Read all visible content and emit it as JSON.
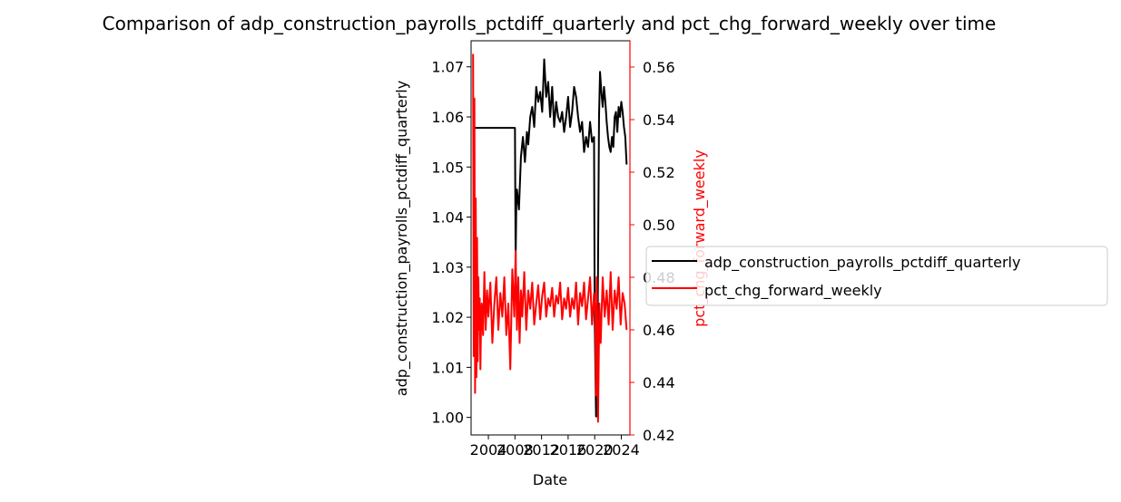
{
  "chart_data": {
    "type": "line",
    "title": "Comparison of adp_construction_payrolls_pctdiff_quarterly and pct_chg_forward_weekly over time",
    "xlabel": "Date",
    "ylabel_left": "adp_construction_payrolls_pctdiff_quarterly",
    "ylabel_right": "pct_chg_forward_weekly",
    "xlim": [
      2001.4,
      2025.3
    ],
    "ylim_left": [
      0.9965,
      1.0752
    ],
    "ylim_right": [
      0.42,
      0.57
    ],
    "x_ticks": [
      2004,
      2008,
      2012,
      2016,
      2020,
      2024
    ],
    "x_tick_labels": [
      "2004",
      "2008",
      "2012",
      "2016",
      "2020",
      "2024"
    ],
    "y_ticks_left": [
      1.0,
      1.01,
      1.02,
      1.03,
      1.04,
      1.05,
      1.06,
      1.07
    ],
    "y_tick_labels_left": [
      "1.00",
      "1.01",
      "1.02",
      "1.03",
      "1.04",
      "1.05",
      "1.06",
      "1.07"
    ],
    "y_ticks_right": [
      0.42,
      0.44,
      0.46,
      0.48,
      0.5,
      0.52,
      0.54,
      0.56
    ],
    "y_tick_labels_right": [
      "0.42",
      "0.44",
      "0.46",
      "0.48",
      "0.50",
      "0.52",
      "0.54",
      "0.56"
    ],
    "legend_position": "right, outside",
    "series": [
      {
        "name": "adp_construction_payrolls_pctdiff_quarterly",
        "axis": "left",
        "color": "#000000",
        "x": [
          2001.8,
          2007.0,
          2008.0,
          2008.1,
          2008.2,
          2008.3,
          2008.6,
          2008.9,
          2009.2,
          2009.5,
          2009.8,
          2010.0,
          2010.3,
          2010.6,
          2010.9,
          2011.2,
          2011.5,
          2011.8,
          2012.1,
          2012.4,
          2012.7,
          2013.0,
          2013.3,
          2013.6,
          2013.9,
          2014.2,
          2014.5,
          2014.8,
          2015.1,
          2015.4,
          2015.7,
          2016.0,
          2016.3,
          2016.6,
          2016.9,
          2017.2,
          2017.5,
          2017.8,
          2018.1,
          2018.4,
          2018.7,
          2019.0,
          2019.3,
          2019.6,
          2019.9,
          2020.0,
          2020.2,
          2020.35,
          2020.5,
          2020.65,
          2020.8,
          2021.0,
          2021.2,
          2021.4,
          2021.6,
          2021.8,
          2022.0,
          2022.2,
          2022.4,
          2022.6,
          2022.8,
          2023.0,
          2023.2,
          2023.4,
          2023.6,
          2023.8,
          2024.0,
          2024.2,
          2024.4,
          2024.6,
          2024.8
        ],
        "values": [
          1.0578,
          1.0578,
          1.0578,
          1.0312,
          1.042,
          1.0455,
          1.0415,
          1.052,
          1.056,
          1.051,
          1.057,
          1.0545,
          1.06,
          1.062,
          1.058,
          1.066,
          1.063,
          1.065,
          1.061,
          1.0715,
          1.064,
          1.067,
          1.06,
          1.066,
          1.058,
          1.063,
          1.06,
          1.059,
          1.061,
          1.057,
          1.06,
          1.064,
          1.058,
          1.061,
          1.066,
          1.064,
          1.06,
          1.057,
          1.059,
          1.053,
          1.056,
          1.054,
          1.059,
          1.055,
          1.056,
          1.02,
          1.0002,
          1.0002,
          1.03,
          1.06,
          1.069,
          1.065,
          1.062,
          1.066,
          1.063,
          1.059,
          1.056,
          1.054,
          1.053,
          1.056,
          1.054,
          1.06,
          1.061,
          1.057,
          1.062,
          1.06,
          1.063,
          1.061,
          1.058,
          1.056,
          1.0505
        ]
      },
      {
        "name": "pct_chg_forward_weekly",
        "axis": "right",
        "color": "#ff0000",
        "x": [
          2001.7,
          2001.8,
          2001.9,
          2002.0,
          2002.1,
          2002.2,
          2002.3,
          2002.4,
          2002.5,
          2002.6,
          2002.7,
          2002.8,
          2002.9,
          2003.0,
          2003.2,
          2003.4,
          2003.6,
          2003.8,
          2004.0,
          2004.3,
          2004.6,
          2004.9,
          2005.2,
          2005.5,
          2005.8,
          2006.1,
          2006.4,
          2006.7,
          2007.0,
          2007.3,
          2007.6,
          2007.9,
          2008.1,
          2008.3,
          2008.5,
          2008.7,
          2008.9,
          2009.1,
          2009.4,
          2009.7,
          2010.0,
          2010.3,
          2010.6,
          2010.9,
          2011.2,
          2011.5,
          2011.8,
          2012.1,
          2012.4,
          2012.7,
          2013.0,
          2013.3,
          2013.6,
          2013.9,
          2014.2,
          2014.5,
          2014.8,
          2015.1,
          2015.4,
          2015.7,
          2016.0,
          2016.3,
          2016.6,
          2016.9,
          2017.2,
          2017.5,
          2017.8,
          2018.1,
          2018.4,
          2018.7,
          2019.0,
          2019.3,
          2019.6,
          2019.9,
          2020.1,
          2020.2,
          2020.3,
          2020.4,
          2020.5,
          2020.7,
          2020.9,
          2021.2,
          2021.5,
          2021.8,
          2022.1,
          2022.4,
          2022.7,
          2023.0,
          2023.3,
          2023.6,
          2023.9,
          2024.2,
          2024.5,
          2024.8
        ],
        "values": [
          0.565,
          0.45,
          0.548,
          0.436,
          0.51,
          0.442,
          0.495,
          0.448,
          0.48,
          0.46,
          0.472,
          0.445,
          0.462,
          0.47,
          0.458,
          0.482,
          0.46,
          0.475,
          0.465,
          0.478,
          0.455,
          0.47,
          0.48,
          0.46,
          0.474,
          0.465,
          0.48,
          0.458,
          0.47,
          0.445,
          0.483,
          0.465,
          0.49,
          0.46,
          0.48,
          0.455,
          0.475,
          0.465,
          0.482,
          0.46,
          0.475,
          0.468,
          0.478,
          0.462,
          0.47,
          0.477,
          0.464,
          0.473,
          0.478,
          0.465,
          0.472,
          0.469,
          0.476,
          0.465,
          0.473,
          0.47,
          0.478,
          0.464,
          0.472,
          0.468,
          0.476,
          0.465,
          0.472,
          0.468,
          0.478,
          0.462,
          0.474,
          0.469,
          0.478,
          0.464,
          0.472,
          0.48,
          0.462,
          0.474,
          0.465,
          0.435,
          0.48,
          0.46,
          0.425,
          0.47,
          0.455,
          0.48,
          0.465,
          0.475,
          0.462,
          0.482,
          0.46,
          0.475,
          0.468,
          0.48,
          0.462,
          0.474,
          0.47,
          0.46
        ]
      }
    ]
  }
}
